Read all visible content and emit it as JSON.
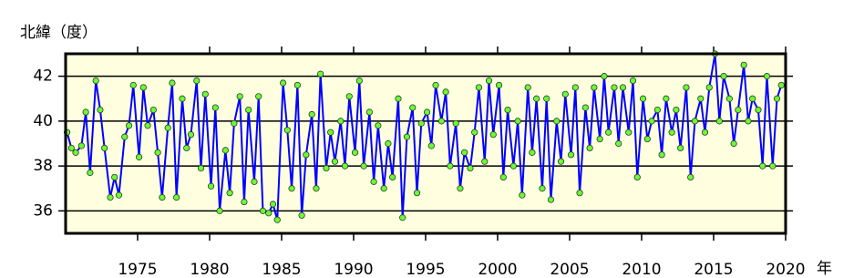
{
  "chart_data": {
    "type": "line",
    "title": "北緯（度）",
    "x_label": "年",
    "x": [
      1970.1,
      1970.4,
      1970.7,
      1971.1,
      1971.4,
      1971.7,
      1972.1,
      1972.4,
      1972.7,
      1973.1,
      1973.4,
      1973.7,
      1974.1,
      1974.4,
      1974.7,
      1975.1,
      1975.4,
      1975.7,
      1976.1,
      1976.4,
      1976.7,
      1977.1,
      1977.4,
      1977.7,
      1978.1,
      1978.4,
      1978.7,
      1979.1,
      1979.4,
      1979.7,
      1980.1,
      1980.4,
      1980.7,
      1981.1,
      1981.4,
      1981.7,
      1982.1,
      1982.4,
      1982.7,
      1983.1,
      1983.4,
      1983.7,
      1984.1,
      1984.4,
      1984.7,
      1985.1,
      1985.4,
      1985.7,
      1986.1,
      1986.4,
      1986.7,
      1987.1,
      1987.4,
      1987.7,
      1988.1,
      1988.4,
      1988.7,
      1989.1,
      1989.4,
      1989.7,
      1990.1,
      1990.4,
      1990.7,
      1991.1,
      1991.4,
      1991.7,
      1992.1,
      1992.4,
      1992.7,
      1993.1,
      1993.4,
      1993.7,
      1994.1,
      1994.4,
      1994.7,
      1995.1,
      1995.4,
      1995.7,
      1996.1,
      1996.4,
      1996.7,
      1997.1,
      1997.4,
      1997.7,
      1998.1,
      1998.4,
      1998.7,
      1999.1,
      1999.4,
      1999.7,
      2000.1,
      2000.4,
      2000.7,
      2001.1,
      2001.4,
      2001.7,
      2002.1,
      2002.4,
      2002.7,
      2003.1,
      2003.4,
      2003.7,
      2004.1,
      2004.4,
      2004.7,
      2005.1,
      2005.4,
      2005.7,
      2006.1,
      2006.4,
      2006.7,
      2007.1,
      2007.4,
      2007.7,
      2008.1,
      2008.4,
      2008.7,
      2009.1,
      2009.4,
      2009.7,
      2010.1,
      2010.4,
      2010.7,
      2011.1,
      2011.4,
      2011.7,
      2012.1,
      2012.4,
      2012.7,
      2013.1,
      2013.4,
      2013.7,
      2014.1,
      2014.4,
      2014.7,
      2015.1,
      2015.4,
      2015.7,
      2016.1,
      2016.4,
      2016.7,
      2017.1,
      2017.4,
      2017.7,
      2018.1,
      2018.4,
      2018.7,
      2019.1,
      2019.4,
      2019.7
    ],
    "series": [
      {
        "color": "#0000ff",
        "marker_color": "#66ff33",
        "values": [
          39.5,
          38.8,
          38.6,
          38.9,
          40.4,
          37.7,
          41.8,
          40.5,
          38.8,
          36.6,
          37.5,
          36.7,
          39.3,
          39.8,
          41.6,
          38.4,
          41.5,
          39.8,
          40.5,
          38.6,
          36.6,
          39.7,
          41.7,
          36.6,
          41.0,
          38.8,
          39.4,
          41.8,
          37.9,
          41.2,
          37.1,
          40.6,
          36.0,
          38.7,
          36.8,
          39.9,
          41.1,
          36.4,
          40.5,
          37.3,
          41.1,
          36.0,
          35.9,
          36.3,
          35.6,
          41.7,
          39.6,
          37.0,
          41.6,
          35.8,
          38.5,
          40.3,
          37.0,
          42.1,
          37.9,
          39.5,
          38.2,
          40.0,
          38.0,
          41.1,
          38.6,
          41.8,
          38.0,
          40.4,
          37.3,
          39.8,
          37.0,
          39.0,
          37.5,
          41.0,
          35.7,
          39.3,
          40.6,
          36.8,
          39.9,
          40.4,
          38.9,
          41.6,
          40.0,
          41.3,
          38.0,
          39.9,
          37.0,
          38.6,
          37.9,
          39.5,
          41.5,
          38.2,
          41.8,
          39.4,
          41.6,
          37.5,
          40.5,
          38.0,
          40.0,
          36.7,
          41.5,
          38.6,
          41.0,
          37.0,
          41.0,
          36.5,
          40.0,
          38.2,
          41.2,
          38.5,
          41.5,
          36.8,
          40.6,
          38.8,
          41.5,
          39.2,
          42.0,
          39.5,
          41.5,
          39.0,
          41.5,
          39.5,
          41.8,
          37.5,
          41.0,
          39.2,
          40.0,
          40.5,
          38.5,
          41.0,
          39.5,
          40.5,
          38.8,
          41.5,
          37.5,
          40.0,
          41.0,
          39.5,
          41.5,
          43.0,
          40.0,
          42.0,
          41.0,
          39.0,
          40.5,
          42.5,
          40.0,
          41.0,
          40.5,
          38.0,
          42.0,
          38.0,
          41.0,
          41.6
        ]
      }
    ],
    "xlim": [
      1970,
      2020
    ],
    "xticks": [
      1975,
      1980,
      1985,
      1990,
      1995,
      2000,
      2005,
      2010,
      2015,
      2020
    ],
    "ylim": [
      35,
      43
    ],
    "yticks": [
      36,
      38,
      40,
      42
    ],
    "grid": true,
    "background": "#ffffe0"
  }
}
